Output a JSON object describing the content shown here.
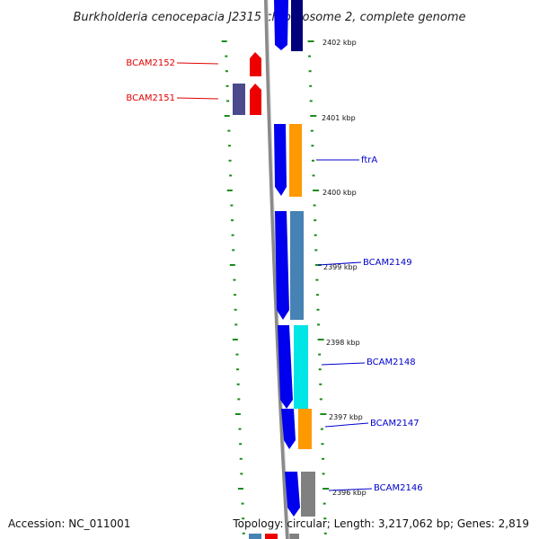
{
  "title": "Burkholderia cenocepacia J2315 chromosome 2, complete genome",
  "footer": {
    "accession": "Accession: NC_011001",
    "topology": "Topology: circular; Length: 3,217,062 bp; Genes: 2,819"
  },
  "colors": {
    "background": "#ffffff",
    "backbone": "#8a8a8a",
    "tick": "#1a8c1a",
    "label_blue": "#0000cc",
    "label_red": "#e00000",
    "gene_blue": "#0000ee",
    "gene_orange": "#ff9900",
    "gene_steelblue": "#4682b4",
    "gene_cyan": "#00e5e5",
    "gene_red": "#ee0000",
    "gene_gray": "#808080",
    "gene_slate": "#4a4a8c",
    "gene_navy": "#00007a"
  },
  "kbp_labels": [
    {
      "text": "2402 kbp",
      "kbp": 2402
    },
    {
      "text": "2401 kbp",
      "kbp": 2401
    },
    {
      "text": "2400 kbp",
      "kbp": 2400
    },
    {
      "text": "2399 kbp",
      "kbp": 2399
    },
    {
      "text": "2398 kbp",
      "kbp": 2398
    },
    {
      "text": "2397 kbp",
      "kbp": 2397
    },
    {
      "text": "2396 kbp",
      "kbp": 2396
    }
  ],
  "genes": [
    {
      "name": "BCAM2152",
      "strand": "reverse",
      "color": "red"
    },
    {
      "name": "BCAM2151",
      "strand": "reverse",
      "color": "red"
    },
    {
      "name": "ftrA",
      "strand": "forward",
      "color": "blue"
    },
    {
      "name": "BCAM2149",
      "strand": "forward",
      "color": "blue"
    },
    {
      "name": "BCAM2148",
      "strand": "forward",
      "color": "blue"
    },
    {
      "name": "BCAM2147",
      "strand": "forward",
      "color": "blue"
    },
    {
      "name": "BCAM2146",
      "strand": "forward",
      "color": "blue"
    }
  ]
}
